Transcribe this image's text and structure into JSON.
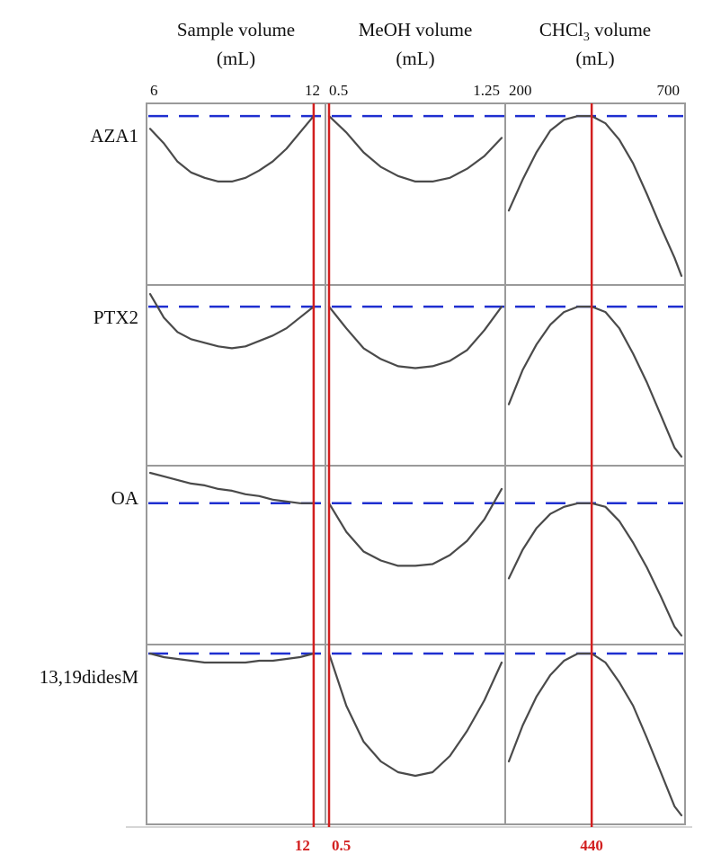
{
  "chart_data": {
    "type": "line",
    "title": "",
    "columns": [
      {
        "header_line1": "Sample volume",
        "header_line2": "(mL)",
        "header_sub": "",
        "tick_min": "6",
        "tick_max": "12",
        "xlim": [
          6,
          12.3
        ],
        "optimum": 12,
        "optimum_label": "12"
      },
      {
        "header_line1": "MeOH volume",
        "header_line2": "(mL)",
        "header_sub": "",
        "tick_min": "0.5",
        "tick_max": "1.25",
        "xlim": [
          0.5,
          1.25
        ],
        "optimum": 0.5,
        "optimum_label": "0.5"
      },
      {
        "header_line1": "CHCl",
        "header_sub": "3",
        "header_line1_suffix": " volume",
        "header_line2": "(mL)",
        "tick_min": "200",
        "tick_max": "700",
        "xlim": [
          200,
          700
        ],
        "optimum": 440,
        "optimum_label": "440"
      }
    ],
    "rows": [
      {
        "label": "AZA1",
        "ylim": [
          0,
          1
        ],
        "reference": 0.93,
        "series": [
          {
            "x": [
              6.0,
              6.5,
              7.0,
              7.5,
              8.0,
              8.5,
              9.0,
              9.5,
              10.0,
              10.5,
              11.0,
              11.5,
              12.0
            ],
            "y": [
              0.86,
              0.78,
              0.68,
              0.62,
              0.59,
              0.57,
              0.57,
              0.59,
              0.63,
              0.68,
              0.75,
              0.84,
              0.93
            ]
          },
          {
            "x": [
              0.5,
              0.575,
              0.65,
              0.725,
              0.8,
              0.875,
              0.95,
              1.025,
              1.1,
              1.175,
              1.25
            ],
            "y": [
              0.93,
              0.84,
              0.73,
              0.65,
              0.6,
              0.57,
              0.57,
              0.59,
              0.64,
              0.71,
              0.81
            ]
          },
          {
            "x": [
              200,
              240,
              280,
              320,
              360,
              400,
              440,
              480,
              520,
              560,
              600,
              640,
              680,
              700
            ],
            "y": [
              0.41,
              0.58,
              0.73,
              0.85,
              0.91,
              0.93,
              0.93,
              0.89,
              0.8,
              0.67,
              0.5,
              0.32,
              0.15,
              0.05
            ]
          }
        ]
      },
      {
        "label": "PTX2",
        "ylim": [
          0,
          1
        ],
        "reference": 0.88,
        "series": [
          {
            "x": [
              6.0,
              6.5,
              7.0,
              7.5,
              8.0,
              8.5,
              9.0,
              9.5,
              10.0,
              10.5,
              11.0,
              11.5,
              12.0
            ],
            "y": [
              0.95,
              0.82,
              0.74,
              0.7,
              0.68,
              0.66,
              0.65,
              0.66,
              0.69,
              0.72,
              0.76,
              0.82,
              0.88
            ]
          },
          {
            "x": [
              0.5,
              0.575,
              0.65,
              0.725,
              0.8,
              0.875,
              0.95,
              1.025,
              1.1,
              1.175,
              1.25
            ],
            "y": [
              0.88,
              0.76,
              0.65,
              0.59,
              0.55,
              0.54,
              0.55,
              0.58,
              0.64,
              0.75,
              0.88
            ]
          },
          {
            "x": [
              200,
              240,
              280,
              320,
              360,
              400,
              440,
              480,
              520,
              560,
              600,
              640,
              680,
              700
            ],
            "y": [
              0.34,
              0.53,
              0.67,
              0.78,
              0.85,
              0.88,
              0.88,
              0.85,
              0.76,
              0.62,
              0.46,
              0.28,
              0.1,
              0.05
            ]
          }
        ]
      },
      {
        "label": "OA",
        "ylim": [
          0,
          1
        ],
        "reference": 0.79,
        "series": [
          {
            "x": [
              6.0,
              6.5,
              7.0,
              7.5,
              8.0,
              8.5,
              9.0,
              9.5,
              10.0,
              10.5,
              11.0,
              11.5,
              12.0
            ],
            "y": [
              0.96,
              0.94,
              0.92,
              0.9,
              0.89,
              0.87,
              0.86,
              0.84,
              0.83,
              0.81,
              0.8,
              0.79,
              0.79
            ]
          },
          {
            "x": [
              0.5,
              0.575,
              0.65,
              0.725,
              0.8,
              0.875,
              0.95,
              1.025,
              1.1,
              1.175,
              1.25
            ],
            "y": [
              0.79,
              0.63,
              0.52,
              0.47,
              0.44,
              0.44,
              0.45,
              0.5,
              0.58,
              0.7,
              0.87
            ]
          },
          {
            "x": [
              200,
              240,
              280,
              320,
              360,
              400,
              440,
              480,
              520,
              560,
              600,
              640,
              680,
              700
            ],
            "y": [
              0.37,
              0.53,
              0.65,
              0.73,
              0.77,
              0.79,
              0.79,
              0.77,
              0.69,
              0.57,
              0.43,
              0.27,
              0.1,
              0.05
            ]
          }
        ]
      },
      {
        "label": "13,19didesM",
        "ylim": [
          0,
          1
        ],
        "reference": 0.95,
        "series": [
          {
            "x": [
              6.0,
              6.5,
              7.0,
              7.5,
              8.0,
              8.5,
              9.0,
              9.5,
              10.0,
              10.5,
              11.0,
              11.5,
              12.0
            ],
            "y": [
              0.95,
              0.93,
              0.92,
              0.91,
              0.9,
              0.9,
              0.9,
              0.9,
              0.91,
              0.91,
              0.92,
              0.93,
              0.95
            ]
          },
          {
            "x": [
              0.5,
              0.575,
              0.65,
              0.725,
              0.8,
              0.875,
              0.95,
              1.025,
              1.1,
              1.175,
              1.25
            ],
            "y": [
              0.95,
              0.66,
              0.46,
              0.35,
              0.29,
              0.27,
              0.29,
              0.38,
              0.52,
              0.69,
              0.9
            ]
          },
          {
            "x": [
              200,
              240,
              280,
              320,
              360,
              400,
              440,
              480,
              520,
              560,
              600,
              640,
              680,
              700
            ],
            "y": [
              0.35,
              0.55,
              0.71,
              0.83,
              0.91,
              0.95,
              0.95,
              0.9,
              0.79,
              0.66,
              0.48,
              0.29,
              0.1,
              0.05
            ]
          }
        ]
      }
    ],
    "colors": {
      "curve": "#4a4a4a",
      "reference": "#1f2fd0",
      "optimum": "#d21f1f",
      "frame": "#9a9a9a",
      "optimum_label": "#d21f1f"
    },
    "grid": false
  }
}
